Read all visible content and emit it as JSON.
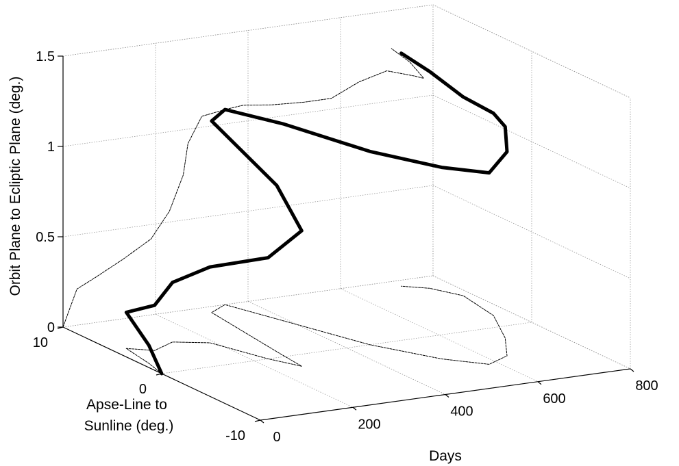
{
  "chart_data": {
    "type": "line",
    "projection": "3d",
    "title": "",
    "xlabel": "Days",
    "ylabel_lines": [
      "Apse-Line to",
      "Sunline (deg.)"
    ],
    "zlabel": "Orbit Plane to Ecliptic Plane (deg.)",
    "xlim": [
      0,
      800
    ],
    "ylim": [
      -10,
      10
    ],
    "zlim": [
      0,
      1.5
    ],
    "x_ticks": [
      "0",
      "200",
      "400",
      "600",
      "800"
    ],
    "y_ticks": [
      "-10",
      "0",
      "10"
    ],
    "z_ticks": [
      "0",
      "0.5",
      "1",
      "1.5"
    ],
    "grid": true,
    "series": [
      {
        "style": "thick",
        "points": [
          [
            0,
            0,
            0
          ],
          [
            15,
            2,
            0.1
          ],
          [
            30,
            5,
            0.2
          ],
          [
            70,
            4,
            0.25
          ],
          [
            130,
            5,
            0.33
          ],
          [
            190,
            4,
            0.42
          ],
          [
            230,
            0,
            0.56
          ],
          [
            260,
            -2,
            0.75
          ],
          [
            270,
            1,
            0.92
          ],
          [
            300,
            9,
            1.06
          ],
          [
            350,
            10,
            1.08
          ],
          [
            390,
            6,
            1.09
          ],
          [
            450,
            0,
            1.07
          ],
          [
            520,
            -4,
            1.06
          ],
          [
            580,
            -6,
            1.06
          ],
          [
            640,
            -5,
            1.13
          ],
          [
            700,
            -2,
            1.17
          ],
          [
            760,
            2,
            1.12
          ],
          [
            780,
            6,
            1.1
          ],
          [
            750,
            8,
            1.2
          ],
          [
            710,
            9,
            1.29
          ]
        ]
      },
      {
        "style": "thin-dashed",
        "plane": "ecliptic-projection",
        "points": [
          [
            0,
            0,
            0
          ],
          [
            15,
            2,
            0
          ],
          [
            30,
            5,
            0
          ],
          [
            70,
            4,
            0
          ],
          [
            130,
            5,
            0
          ],
          [
            190,
            4,
            0
          ],
          [
            230,
            0,
            0
          ],
          [
            260,
            -2,
            0
          ],
          [
            270,
            1,
            0
          ],
          [
            300,
            9,
            0
          ],
          [
            350,
            10,
            0
          ],
          [
            390,
            6,
            0
          ],
          [
            450,
            0,
            0
          ],
          [
            520,
            -4,
            0
          ],
          [
            580,
            -6,
            0
          ],
          [
            640,
            -5,
            0
          ],
          [
            700,
            -2,
            0
          ],
          [
            760,
            2,
            0
          ],
          [
            780,
            6,
            0
          ],
          [
            750,
            8,
            0
          ],
          [
            710,
            9,
            0
          ]
        ]
      },
      {
        "style": "thin-dashed",
        "plane": "back-wall-projection",
        "points": [
          [
            0,
            10,
            0
          ],
          [
            15,
            10,
            0.1
          ],
          [
            30,
            10,
            0.2
          ],
          [
            70,
            10,
            0.25
          ],
          [
            130,
            10,
            0.33
          ],
          [
            190,
            10,
            0.42
          ],
          [
            230,
            10,
            0.56
          ],
          [
            260,
            10,
            0.75
          ],
          [
            270,
            10,
            0.92
          ],
          [
            300,
            10,
            1.06
          ],
          [
            350,
            10,
            1.08
          ],
          [
            390,
            10,
            1.09
          ],
          [
            450,
            10,
            1.07
          ],
          [
            520,
            10,
            1.06
          ],
          [
            580,
            10,
            1.06
          ],
          [
            640,
            10,
            1.13
          ],
          [
            700,
            10,
            1.17
          ],
          [
            760,
            10,
            1.12
          ],
          [
            780,
            10,
            1.1
          ],
          [
            750,
            10,
            1.2
          ],
          [
            710,
            10,
            1.29
          ]
        ]
      }
    ]
  }
}
